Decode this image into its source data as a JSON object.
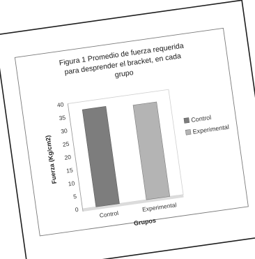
{
  "chart_data": {
    "type": "bar",
    "title_lines": [
      "Figura 1 Promedio de fuerza requerida",
      "para desprender el bracket, en cada",
      "grupo"
    ],
    "categories": [
      "Control",
      "Experimental"
    ],
    "series": [
      {
        "name": "Control",
        "values": [
          37,
          null
        ],
        "color": "#7d7d7d"
      },
      {
        "name": "Experimental",
        "values": [
          null,
          36
        ],
        "color": "#b4b4b4"
      }
    ],
    "yticks": [
      "0",
      "5",
      "10",
      "15",
      "20",
      "25",
      "30",
      "35",
      "40"
    ],
    "ylim": [
      0,
      40
    ],
    "xlabel": "Grupos",
    "ylabel": "Fuerza (Kg/cm2)",
    "legend_position": "right",
    "grid": false
  },
  "colors": {
    "frame": "#1e1e1e",
    "box_border": "#7a7a7a",
    "text": "#222222"
  }
}
